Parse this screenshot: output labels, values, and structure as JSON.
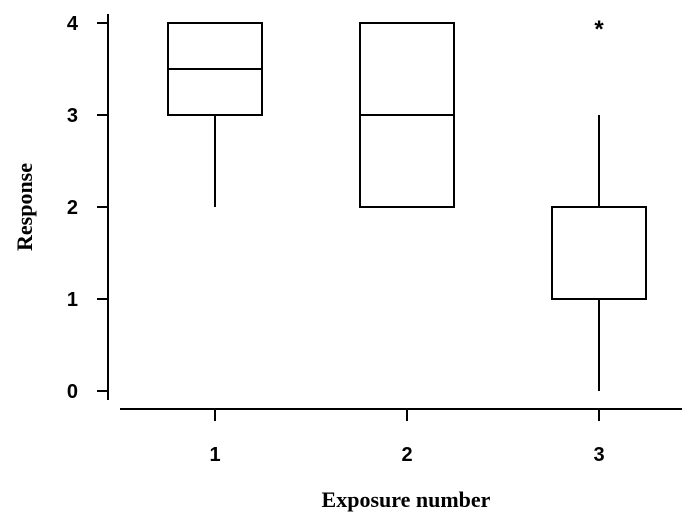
{
  "chart_data": {
    "type": "boxplot",
    "xlabel": "Exposure number",
    "ylabel": "Response",
    "ylim": [
      0,
      4
    ],
    "yticks": [
      0,
      1,
      2,
      3,
      4
    ],
    "categories": [
      "1",
      "2",
      "3"
    ],
    "boxes": [
      {
        "category": "1",
        "whisker_low": 2,
        "q1": 3,
        "median": 3.5,
        "q3": 4,
        "whisker_high": 4,
        "outliers": []
      },
      {
        "category": "2",
        "whisker_low": 2,
        "q1": 2,
        "median": 3,
        "q3": 4,
        "whisker_high": 4,
        "outliers": []
      },
      {
        "category": "3",
        "whisker_low": 0,
        "q1": 1,
        "median": 1,
        "q3": 2,
        "whisker_high": 3,
        "outliers": [
          4
        ]
      }
    ],
    "outlier_marker": "*",
    "grid": false,
    "legend": "none"
  }
}
